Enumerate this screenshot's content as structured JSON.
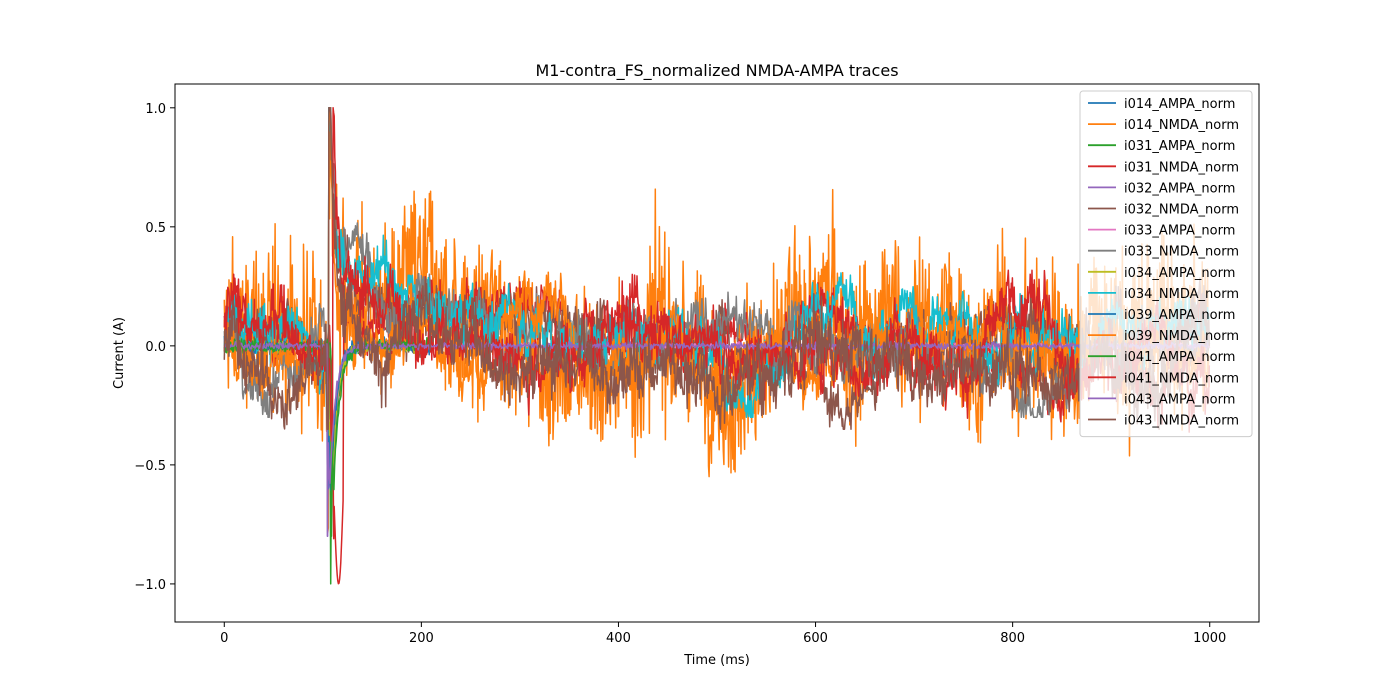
{
  "chart_data": {
    "type": "line",
    "title": "M1-contra_FS_normalized NMDA-AMPA traces",
    "xlabel": "Time (ms)",
    "ylabel": "Current (A)",
    "xlim": [
      -50,
      1050
    ],
    "ylim": [
      -1.16,
      1.1
    ],
    "xticks": [
      0,
      200,
      400,
      600,
      800,
      1000
    ],
    "xtick_labels": [
      "0",
      "200",
      "400",
      "600",
      "800",
      "1000"
    ],
    "yticks": [
      -1.0,
      -0.5,
      0.0,
      0.5,
      1.0
    ],
    "ytick_labels": [
      "−1.0",
      "−0.5",
      "0.0",
      "0.5",
      "1.0"
    ],
    "grid": false,
    "legend_position": "top-right",
    "series": [
      {
        "name": "i014_AMPA_norm",
        "color": "#1f77b4",
        "kind": "ampa",
        "x_end": 210,
        "peak_t": 105,
        "noise": 0.02
      },
      {
        "name": "i014_NMDA_norm",
        "color": "#ff7f0e",
        "kind": "nmda",
        "x_end": 1000,
        "peak_t": 106,
        "noise": 0.25,
        "peak_height": 0.45,
        "base": 0.05,
        "min": -0.84,
        "max": 1.0
      },
      {
        "name": "i031_AMPA_norm",
        "color": "#2ca02c",
        "kind": "ampa",
        "x_end": 210,
        "peak_t": 107,
        "noise": 0.02
      },
      {
        "name": "i031_NMDA_norm",
        "color": "#d62728",
        "kind": "nmda",
        "x_end": 1000,
        "peak_t": 111,
        "noise": 0.06,
        "peak_height": 0.4,
        "base": 0.1,
        "min": -1.06,
        "max": 1.0
      },
      {
        "name": "i032_AMPA_norm",
        "color": "#9467bd",
        "kind": "ampa",
        "x_end": 210,
        "peak_t": 104,
        "noise": 0.02
      },
      {
        "name": "i032_NMDA_norm",
        "color": "#8c564b",
        "kind": "nmda",
        "x_end": 1000,
        "peak_t": 106,
        "noise": 0.07,
        "peak_height": 0.35,
        "base": 0.02,
        "min": -0.35,
        "max": 1.0
      },
      {
        "name": "i033_AMPA_norm",
        "color": "#e377c2",
        "kind": "ampa",
        "x_end": 1000,
        "peak_t": 106,
        "noise": 0.01
      },
      {
        "name": "i033_NMDA_norm",
        "color": "#7f7f7f",
        "kind": "nmda",
        "x_end": 1000,
        "peak_t": 106,
        "noise": 0.06,
        "peak_height": 0.35,
        "base": 0.03,
        "min": -0.3,
        "max": 1.0
      },
      {
        "name": "i034_AMPA_norm",
        "color": "#bcbd22",
        "kind": "ampa",
        "x_end": 210,
        "peak_t": 106,
        "noise": 0.02
      },
      {
        "name": "i034_NMDA_norm",
        "color": "#17becf",
        "kind": "nmda",
        "x_end": 1000,
        "peak_t": 106,
        "noise": 0.06,
        "peak_height": 0.45,
        "base": 0.08,
        "min": -0.3,
        "max": 1.0
      },
      {
        "name": "i039_AMPA_norm",
        "color": "#1f77b4",
        "kind": "ampa",
        "x_end": 210,
        "peak_t": 105,
        "noise": 0.02
      },
      {
        "name": "i039_NMDA_norm",
        "color": "#ff7f0e",
        "kind": "nmda",
        "x_end": 1000,
        "peak_t": 106,
        "noise": 0.06,
        "peak_height": 0.3,
        "base": 0.05,
        "min": -0.3,
        "max": 1.0
      },
      {
        "name": "i041_AMPA_norm",
        "color": "#2ca02c",
        "kind": "ampa",
        "x_end": 210,
        "peak_t": 108,
        "noise": 0.02
      },
      {
        "name": "i041_NMDA_norm",
        "color": "#d62728",
        "kind": "nmda",
        "x_end": 1000,
        "peak_t": 110,
        "noise": 0.07,
        "peak_height": 0.35,
        "base": 0.1,
        "min": -0.4,
        "max": 1.0
      },
      {
        "name": "i043_AMPA_norm",
        "color": "#9467bd",
        "kind": "ampa",
        "x_end": 1000,
        "peak_t": 104,
        "noise": 0.01
      },
      {
        "name": "i043_NMDA_norm",
        "color": "#8c564b",
        "kind": "nmda",
        "x_end": 1000,
        "peak_t": 106,
        "noise": 0.08,
        "peak_height": 0.35,
        "base": 0.0,
        "min": -0.35,
        "max": 1.0
      }
    ]
  }
}
